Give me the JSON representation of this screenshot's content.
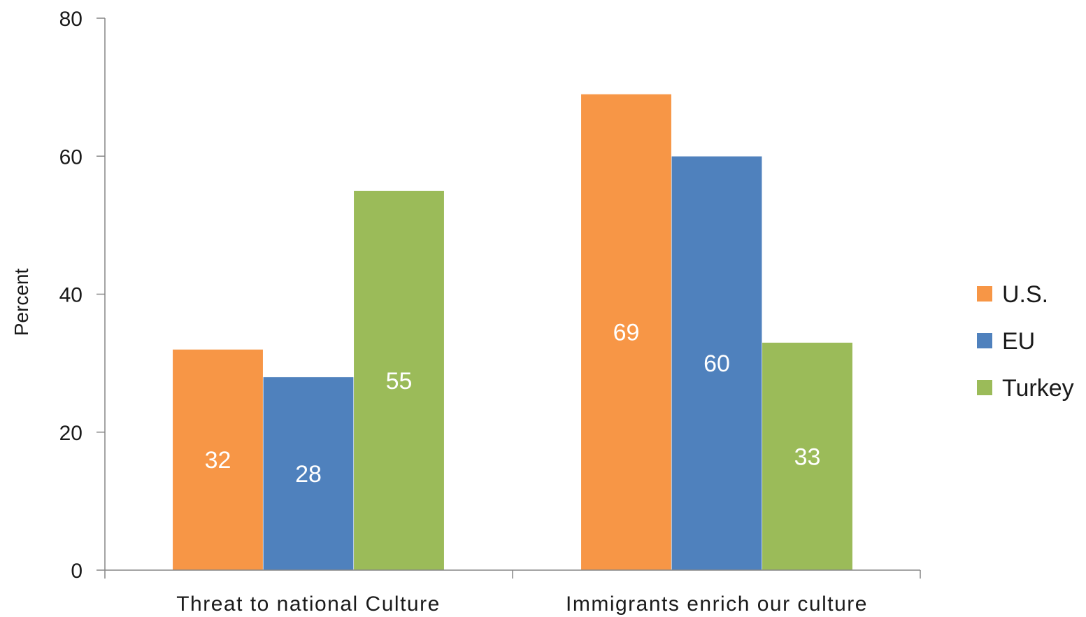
{
  "chart_data": {
    "type": "bar",
    "title": "",
    "xlabel": "",
    "ylabel": "Percent",
    "ylim": [
      0,
      80
    ],
    "yticks": [
      0,
      20,
      40,
      60,
      80
    ],
    "grid": false,
    "legend_position": "right",
    "categories": [
      "Threat to national Culture",
      "Immigrants enrich our culture"
    ],
    "series": [
      {
        "name": "U.S.",
        "color": "#F79646",
        "values": [
          32,
          69
        ]
      },
      {
        "name": "EU",
        "color": "#4F81BD",
        "values": [
          28,
          60
        ]
      },
      {
        "name": "Turkey",
        "color": "#9BBB59",
        "values": [
          55,
          33
        ]
      }
    ],
    "data_labels": [
      [
        "32",
        "69"
      ],
      [
        "28",
        "60"
      ],
      [
        "55",
        "33"
      ]
    ]
  }
}
